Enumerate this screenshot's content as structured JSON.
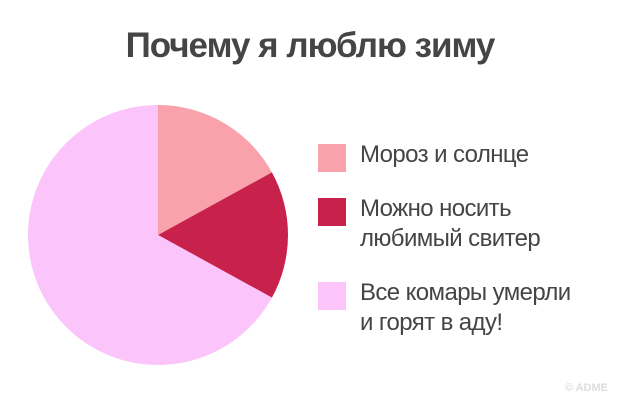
{
  "chart_data": {
    "type": "pie",
    "title": "Почему я люблю зиму",
    "categories": [
      "Мороз и солнце",
      "Можно носить\nлюбимый свитер",
      "Все комары умерли\nи горят в аду!"
    ],
    "values": [
      17,
      16,
      67
    ],
    "colors": [
      "#f9a2ab",
      "#c8214b",
      "#fbc4fb"
    ],
    "watermark": "© ADME"
  }
}
